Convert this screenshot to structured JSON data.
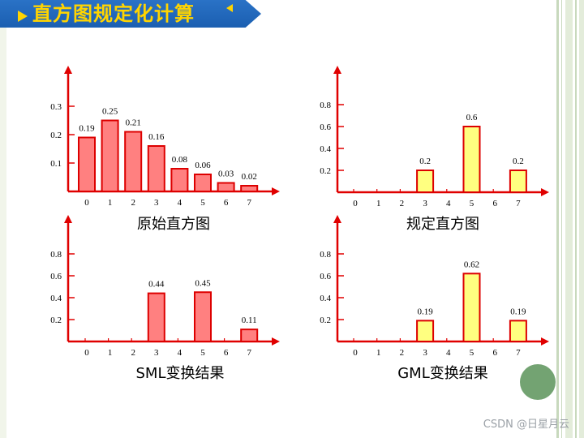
{
  "header": {
    "title": "直方图规定化计算"
  },
  "watermark": "CSDN @日星月云",
  "colors": {
    "axis": "#e00000",
    "bar_red_fill": "#ff8080",
    "bar_red_stroke": "#dd0000",
    "bar_yellow_fill": "#ffff80",
    "bar_yellow_stroke": "#dd0000",
    "banner": "#1b5fb1",
    "banner_text": "#ffd400",
    "circle": "#73a372"
  },
  "chart_data": [
    {
      "id": "original",
      "type": "bar",
      "title": "原始直方图",
      "categories": [
        "0",
        "1",
        "2",
        "3",
        "4",
        "5",
        "6",
        "7"
      ],
      "values": [
        0.19,
        0.25,
        0.21,
        0.16,
        0.08,
        0.06,
        0.03,
        0.02
      ],
      "labels": [
        "0.19",
        "0.25",
        "0.21",
        "0.16",
        "0.08",
        "0.06",
        "0.03",
        "0.02"
      ],
      "yticks": [
        "0.1",
        "0.2",
        "0.3"
      ],
      "ytick_values": [
        0.1,
        0.2,
        0.3
      ],
      "ylim": [
        0,
        0.35
      ],
      "bar_color": "red"
    },
    {
      "id": "specified",
      "type": "bar",
      "title": "规定直方图",
      "categories": [
        "0",
        "1",
        "2",
        "3",
        "4",
        "5",
        "6",
        "7"
      ],
      "values": [
        0,
        0,
        0,
        0.2,
        0,
        0.6,
        0,
        0.2
      ],
      "labels": [
        "",
        "",
        "",
        "0.2",
        "",
        "0.6",
        "",
        "0.2"
      ],
      "yticks": [
        "0.2",
        "0.4",
        "0.6",
        "0.8"
      ],
      "ytick_values": [
        0.2,
        0.4,
        0.6,
        0.8
      ],
      "ylim": [
        0,
        0.95
      ],
      "bar_color": "yellow"
    },
    {
      "id": "sml",
      "type": "bar",
      "title": "SML变换结果",
      "categories": [
        "0",
        "1",
        "2",
        "3",
        "4",
        "5",
        "6",
        "7"
      ],
      "values": [
        0,
        0,
        0,
        0.44,
        0,
        0.45,
        0,
        0.11
      ],
      "labels": [
        "",
        "",
        "",
        "0.44",
        "",
        "0.45",
        "",
        "0.11"
      ],
      "yticks": [
        "0.2",
        "0.4",
        "0.6",
        "0.8"
      ],
      "ytick_values": [
        0.2,
        0.4,
        0.6,
        0.8
      ],
      "ylim": [
        0,
        0.95
      ],
      "bar_color": "red"
    },
    {
      "id": "gml",
      "type": "bar",
      "title": "GML变换结果",
      "categories": [
        "0",
        "1",
        "2",
        "3",
        "4",
        "5",
        "6",
        "7"
      ],
      "values": [
        0,
        0,
        0,
        0.19,
        0,
        0.62,
        0,
        0.19
      ],
      "labels": [
        "",
        "",
        "",
        "0.19",
        "",
        "0.62",
        "",
        "0.19"
      ],
      "yticks": [
        "0.2",
        "0.4",
        "0.6",
        "0.8"
      ],
      "ytick_values": [
        0.2,
        0.4,
        0.6,
        0.8
      ],
      "ylim": [
        0,
        0.95
      ],
      "bar_color": "yellow"
    }
  ]
}
